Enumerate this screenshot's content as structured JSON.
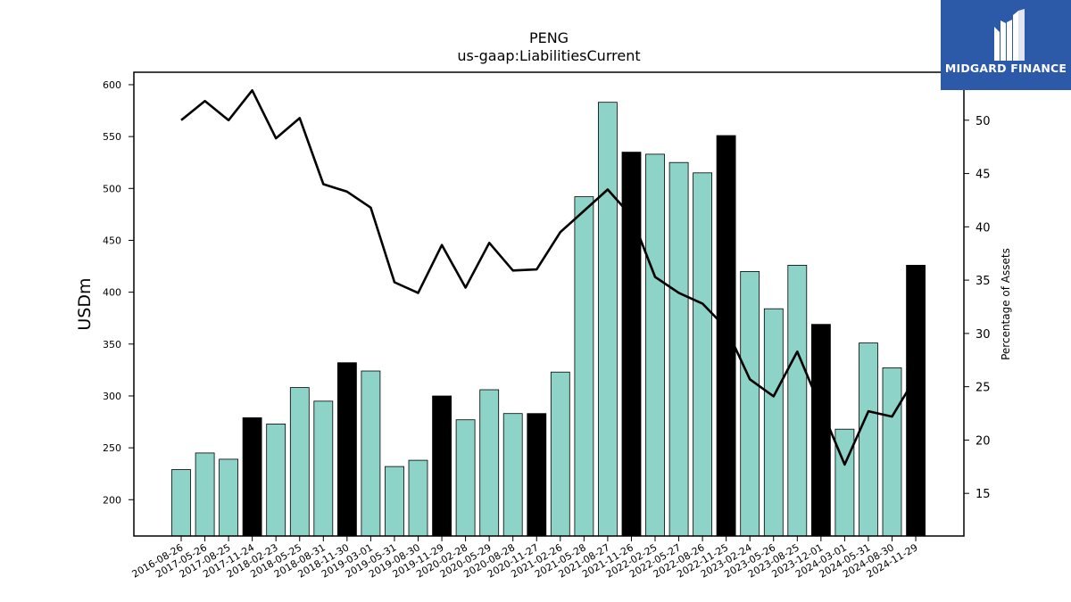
{
  "chart_data": {
    "type": "bar",
    "title": "PENG",
    "subtitle": "us-gaap:LiabilitiesCurrent",
    "ylabel": "USDm",
    "y2label": "Percentage of Assets",
    "ylim": [
      165,
      612
    ],
    "y2lim": [
      11,
      54.5
    ],
    "yticks": [
      200,
      250,
      300,
      350,
      400,
      450,
      500,
      550,
      600
    ],
    "y2ticks": [
      15,
      20,
      25,
      30,
      35,
      40,
      45,
      50
    ],
    "grid": false,
    "categories": [
      "2016-08-26",
      "2017-05-26",
      "2017-08-25",
      "2017-11-24",
      "2018-02-23",
      "2018-05-25",
      "2018-08-31",
      "2018-11-30",
      "2019-03-01",
      "2019-05-31",
      "2019-08-30",
      "2019-11-29",
      "2020-02-28",
      "2020-05-29",
      "2020-08-28",
      "2020-11-27",
      "2021-02-26",
      "2021-05-28",
      "2021-08-27",
      "2021-11-26",
      "2022-02-25",
      "2022-05-27",
      "2022-08-26",
      "2022-11-25",
      "2023-02-24",
      "2023-05-26",
      "2023-08-25",
      "2023-12-01",
      "2024-03-01",
      "2024-05-31",
      "2024-08-30",
      "2024-11-29"
    ],
    "series": [
      {
        "kind": "bar",
        "values": [
          229,
          245,
          239,
          279,
          273,
          308,
          295,
          332,
          324,
          232,
          238,
          300,
          277,
          306,
          283,
          283,
          323,
          492,
          583,
          535,
          533,
          525,
          515,
          551,
          420,
          384,
          426,
          369,
          268,
          351,
          327,
          426
        ],
        "highlight": [
          false,
          false,
          false,
          true,
          false,
          false,
          false,
          true,
          false,
          false,
          false,
          true,
          false,
          false,
          false,
          true,
          false,
          false,
          false,
          true,
          false,
          false,
          false,
          true,
          false,
          false,
          false,
          true,
          false,
          false,
          false,
          true
        ],
        "color": "#8dd3c7",
        "highlight_color": "#000000"
      },
      {
        "kind": "line",
        "axis": "right",
        "values": [
          50.0,
          51.8,
          50.0,
          52.8,
          48.3,
          50.2,
          44.0,
          43.3,
          41.8,
          34.8,
          33.8,
          38.3,
          34.3,
          38.5,
          35.9,
          36.0,
          39.5,
          41.5,
          43.5,
          41.0,
          35.3,
          33.8,
          32.8,
          30.5,
          25.7,
          24.1,
          28.3,
          23.0,
          17.7,
          22.7,
          22.2,
          25.9
        ],
        "color": "#000000"
      }
    ]
  },
  "logo": {
    "text": "MIDGARD FINANCE",
    "background": "#2c5aa8"
  }
}
